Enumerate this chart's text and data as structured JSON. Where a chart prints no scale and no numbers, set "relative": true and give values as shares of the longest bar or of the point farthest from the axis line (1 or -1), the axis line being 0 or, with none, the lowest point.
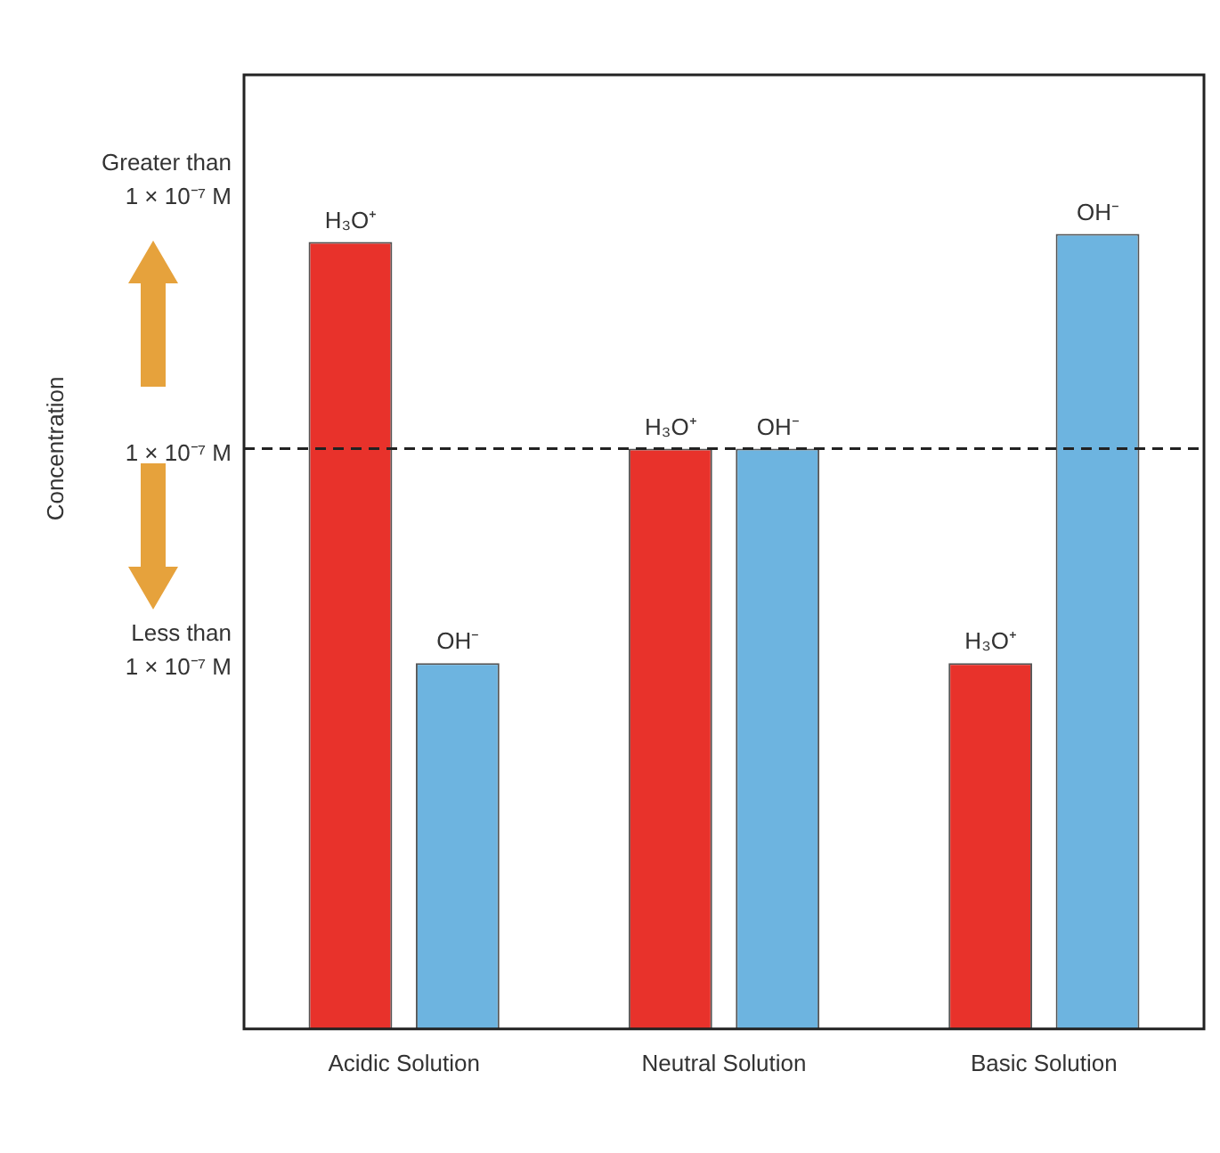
{
  "chart_data": {
    "type": "bar",
    "relative": true,
    "categories": [
      "Acidic Solution",
      "Neutral Solution",
      "Basic Solution"
    ],
    "series": [
      {
        "name": "H₃O⁺",
        "color": "#e8322b",
        "values": [
          0.99,
          0.73,
          0.46
        ]
      },
      {
        "name": "OH⁻",
        "color": "#6db4e0",
        "values": [
          0.46,
          0.73,
          1
        ]
      }
    ],
    "ref_lines": [
      {
        "axis": "y",
        "value": 0.73,
        "label": "1 × 10⁻⁷ M",
        "line_style": "dashed",
        "color": "#222222"
      }
    ],
    "annotations": [
      "Concentration",
      "Greater than 1 × 10⁻⁷ M",
      "Less than 1 × 10⁻⁷ M"
    ],
    "grid": false,
    "legend": false
  }
}
